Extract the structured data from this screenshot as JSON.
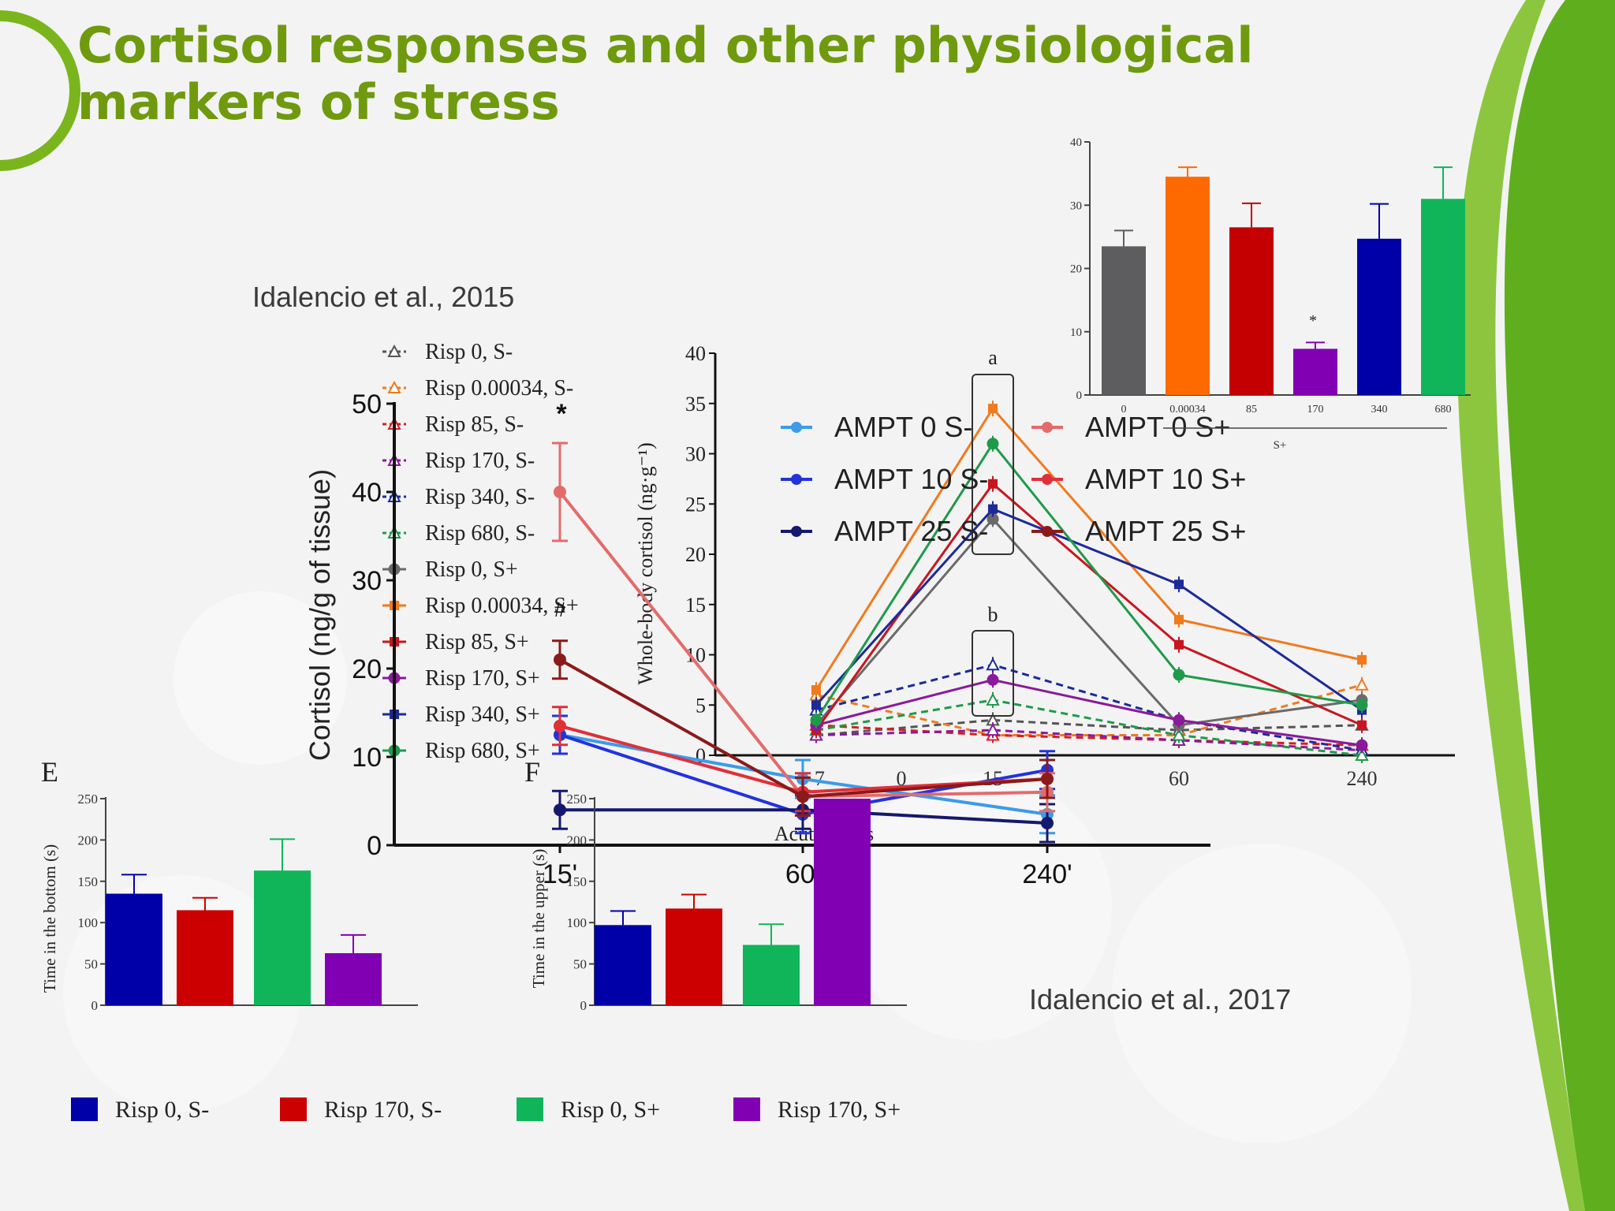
{
  "slide": {
    "title_line1": "Cortisol responses and other physiological",
    "title_line2": "markers of stress",
    "citation_2015": "Idalencio et al., 2015",
    "citation_2017": "Idalencio et al., 2017",
    "colors": {
      "title": "#6f9a0e",
      "swoosh": "#5fae1e"
    }
  },
  "chart_data": [
    {
      "id": "fig-2017-line",
      "type": "line",
      "ylabel": "Whole-body cortisol (ng·g⁻¹)",
      "xlabel": "Acute stress",
      "ylim": [
        0,
        40
      ],
      "y_ticks": [
        "0",
        "5",
        "10",
        "15",
        "20",
        "25",
        "30",
        "35",
        "40"
      ],
      "x_ticks": [
        "0",
        "15",
        "60",
        "240"
      ],
      "x_tick_extra": "-7",
      "x": [
        "-7",
        "15",
        "60",
        "240"
      ],
      "annotations": [
        "a",
        "b"
      ],
      "series": [
        {
          "name": "Risp 0, S-",
          "color": "#555555",
          "dash": true,
          "marker": "triangle",
          "values": [
            2,
            3.5,
            2.5,
            3
          ]
        },
        {
          "name": "Risp 0.00034, S-",
          "color": "#f07a1e",
          "dash": true,
          "marker": "triangle",
          "values": [
            6,
            2,
            2,
            7
          ]
        },
        {
          "name": "Risp 85, S-",
          "color": "#d42020",
          "dash": true,
          "marker": "triangle",
          "values": [
            3,
            2,
            1.5,
            1
          ]
        },
        {
          "name": "Risp 170, S-",
          "color": "#8a1a9a",
          "dash": true,
          "marker": "triangle",
          "values": [
            2,
            2.5,
            1.5,
            0.5
          ]
        },
        {
          "name": "Risp 340, S-",
          "color": "#1c2a9a",
          "dash": true,
          "marker": "triangle",
          "values": [
            4.5,
            9,
            3.5,
            0.5
          ]
        },
        {
          "name": "Risp 680, S-",
          "color": "#1f9a4a",
          "dash": true,
          "marker": "triangle",
          "values": [
            2.5,
            5.5,
            2,
            0
          ]
        },
        {
          "name": "Risp 0, S+",
          "color": "#6a6a6a",
          "dash": false,
          "marker": "circle",
          "values": [
            3,
            23.5,
            3,
            5.5
          ]
        },
        {
          "name": "Risp 0.00034, S+",
          "color": "#f07a1e",
          "dash": false,
          "marker": "square",
          "values": [
            6.5,
            34.5,
            13.5,
            9.5
          ]
        },
        {
          "name": "Risp 85, S+",
          "color": "#c8161e",
          "dash": false,
          "marker": "square",
          "values": [
            2.5,
            27,
            11,
            3
          ]
        },
        {
          "name": "Risp 170, S+",
          "color": "#8a1a9a",
          "dash": false,
          "marker": "circle",
          "values": [
            3,
            7.5,
            3.5,
            1
          ]
        },
        {
          "name": "Risp 340, S+",
          "color": "#1c2a9a",
          "dash": false,
          "marker": "square",
          "values": [
            5,
            24.5,
            17,
            4.5
          ]
        },
        {
          "name": "Risp 680, S+",
          "color": "#1f9a4a",
          "dash": false,
          "marker": "circle",
          "values": [
            3.5,
            31,
            8,
            5
          ]
        }
      ]
    },
    {
      "id": "fig-2015-line",
      "type": "line",
      "ylabel": "Cortisol (ng/g of tissue)",
      "ylim": [
        0,
        50
      ],
      "y_ticks": [
        "0",
        "10",
        "20",
        "30",
        "40",
        "50"
      ],
      "categories": [
        "15'",
        "60'",
        "240'"
      ],
      "symbols": [
        "*",
        "#"
      ],
      "series": [
        {
          "name": "AMPT 0 S-",
          "color": "#3d9be9",
          "values": [
            12.5,
            7.5,
            3.5
          ]
        },
        {
          "name": "AMPT 10 S-",
          "color": "#2233dd",
          "values": [
            12.5,
            3.5,
            8.5
          ]
        },
        {
          "name": "AMPT 25 S-",
          "color": "#14196e",
          "values": [
            4,
            4,
            2.5
          ]
        },
        {
          "name": "AMPT 0 S+",
          "color": "#e36b6b",
          "values": [
            40,
            5.5,
            6
          ]
        },
        {
          "name": "AMPT 10 S+",
          "color": "#e0303a",
          "values": [
            13.5,
            6,
            7.5
          ]
        },
        {
          "name": "AMPT 25 S+",
          "color": "#8b1a1a",
          "values": [
            21,
            5.5,
            7.5
          ]
        }
      ]
    },
    {
      "id": "fig-inset-bar",
      "type": "bar",
      "categories": [
        "0",
        "0.00034",
        "85",
        "170",
        "340",
        "680"
      ],
      "values": [
        23.5,
        34.5,
        26.5,
        7.3,
        24.7,
        31
      ],
      "errors": [
        2.5,
        1.5,
        3.8,
        1,
        5.5,
        5
      ],
      "colors": [
        "#5d5d60",
        "#ff6a00",
        "#c40000",
        "#8200b4",
        "#0000a8",
        "#10b55a"
      ],
      "ylim": [
        0,
        40
      ],
      "y_ticks": [
        "0",
        "10",
        "20",
        "30",
        "40"
      ],
      "xlabel": "S+",
      "annotation": "*"
    },
    {
      "id": "fig-E",
      "type": "bar",
      "panel_label": "E",
      "ylabel": "Time in the bottom (s)",
      "values": [
        135,
        115,
        163,
        63
      ],
      "errors": [
        23,
        15,
        38,
        22
      ],
      "colors": [
        "#0000a8",
        "#cc0000",
        "#10b55a",
        "#8200b4"
      ],
      "ylim": [
        0,
        250
      ],
      "y_ticks": [
        "0",
        "50",
        "100",
        "150",
        "200",
        "250"
      ]
    },
    {
      "id": "fig-F",
      "type": "bar",
      "panel_label": "F",
      "ylabel": "Time in the upper (s)",
      "values": [
        97,
        117,
        73,
        250
      ],
      "errors": [
        17,
        17,
        25,
        0
      ],
      "colors": [
        "#0000a8",
        "#cc0000",
        "#10b55a",
        "#8200b4"
      ],
      "ylim": [
        0,
        250
      ],
      "y_ticks": [
        "0",
        "50",
        "100",
        "150",
        "200",
        "250"
      ]
    }
  ],
  "bottom_legend": [
    {
      "label": "Risp 0, S-",
      "color": "#0000a8"
    },
    {
      "label": "Risp 170, S-",
      "color": "#cc0000"
    },
    {
      "label": "Risp 0, S+",
      "color": "#10b55a"
    },
    {
      "label": "Risp 170, S+",
      "color": "#8200b4"
    }
  ]
}
